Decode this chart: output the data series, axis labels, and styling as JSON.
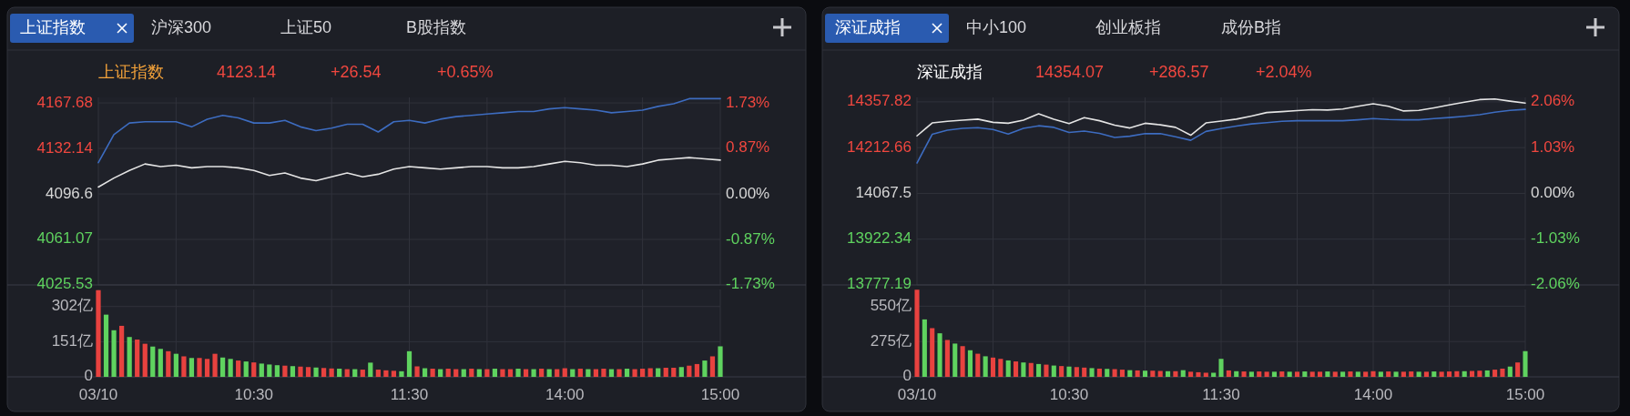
{
  "chart_data": [
    {
      "type": "line",
      "title": "上证指数",
      "annotations": [
        "4123.14",
        "+26.54",
        "+0.65%",
        "上证指数",
        "沪深300",
        "上证50",
        "B股指数"
      ],
      "categories": [
        null,
        null,
        null,
        null,
        null,
        null,
        null,
        null,
        null,
        null,
        null,
        null,
        null,
        null,
        null,
        null,
        null,
        null,
        null,
        null,
        null,
        null,
        null,
        null,
        null,
        null,
        null,
        null,
        null,
        null,
        null,
        null,
        null,
        null,
        null,
        null,
        null,
        null,
        null,
        null,
        null
      ],
      "series": [
        {
          "color": "#3d6cc0",
          "values": [
            4121,
            4143,
            4152,
            4153,
            4153,
            4153,
            4149,
            4155,
            4158,
            4156,
            4152,
            4152,
            4154,
            4149,
            4146,
            4148,
            4151,
            4151,
            4145,
            4153,
            4154,
            4152,
            4155,
            4157,
            4158,
            4159,
            4160,
            4161,
            4161,
            4163,
            4164,
            4163,
            4162,
            4160,
            4161,
            4162,
            4165,
            4167,
            4171,
            4171,
            4171
          ]
        },
        {
          "color": "#e4e4e4",
          "values": [
            4102,
            4109,
            4115,
            4120,
            4118,
            4119,
            4117,
            4118,
            4118,
            4117,
            4115,
            4111,
            4113,
            4109,
            4107,
            4110,
            4113,
            4110,
            4112,
            4116,
            4118,
            4117,
            4116,
            4117,
            4118,
            4118,
            4117,
            4117,
            4118,
            4120,
            4122,
            4121,
            4119,
            4119,
            4118,
            4120,
            4123,
            4124,
            4125,
            4124,
            4123
          ]
        }
      ],
      "ylim": [
        4025.53,
        4172
      ],
      "yticks": [
        4167.68,
        4132.14,
        4096.6,
        4061.07,
        4025.53
      ],
      "y2lim": [
        -1.73,
        1.84
      ],
      "y2ticks": [
        {
          "value": 1.73,
          "label": "1.73%"
        },
        {
          "value": 0.87,
          "label": "0.87%"
        },
        {
          "value": 0,
          "label": "0.00%"
        },
        {
          "value": -0.87,
          "label": "-0.87%"
        },
        {
          "value": -1.73,
          "label": "-1.73%"
        }
      ],
      "tick_labels": "y",
      "grid": true
    },
    {
      "type": "bar",
      "categories": [
        "03/10",
        null,
        null,
        null,
        null,
        null,
        null,
        null,
        null,
        null,
        null,
        null,
        null,
        null,
        null,
        null,
        null,
        null,
        null,
        null,
        "10:30",
        null,
        null,
        null,
        null,
        null,
        null,
        null,
        null,
        null,
        null,
        null,
        null,
        null,
        null,
        null,
        null,
        null,
        null,
        null,
        "11:30",
        null,
        null,
        null,
        null,
        null,
        null,
        null,
        null,
        null,
        null,
        null,
        null,
        null,
        null,
        null,
        null,
        null,
        null,
        null,
        "14:00",
        null,
        null,
        null,
        null,
        null,
        null,
        null,
        null,
        null,
        null,
        null,
        null,
        null,
        null,
        null,
        null,
        null,
        null,
        null,
        "15:00"
      ],
      "values": [
        372,
        267,
        200,
        219,
        171,
        160,
        142,
        130,
        120,
        110,
        99,
        88,
        81,
        81,
        77,
        99,
        83,
        77,
        70,
        66,
        62,
        57,
        53,
        50,
        48,
        46,
        44,
        42,
        40,
        38,
        36,
        35,
        33,
        33,
        31,
        61,
        31,
        28,
        26,
        24,
        110,
        45,
        37,
        35,
        33,
        35,
        33,
        33,
        35,
        33,
        33,
        35,
        33,
        33,
        35,
        33,
        33,
        35,
        33,
        33,
        37,
        33,
        35,
        33,
        33,
        35,
        33,
        33,
        35,
        33,
        35,
        37,
        37,
        39,
        39,
        42,
        48,
        55,
        70,
        88,
        131
      ],
      "colors": [
        "#e8423f",
        "#5fd35f",
        "#5fd35f",
        "#e8423f",
        "#5fd35f",
        "#e8423f",
        "#e8423f",
        "#5fd35f",
        "#5fd35f",
        "#e8423f",
        "#5fd35f",
        "#e8423f",
        "#5fd35f",
        "#e8423f",
        "#e8423f",
        "#e8423f",
        "#5fd35f",
        "#5fd35f",
        "#e8423f",
        "#5fd35f",
        "#e8423f",
        "#5fd35f",
        "#5fd35f",
        "#5fd35f",
        "#e8423f",
        "#5fd35f",
        "#e8423f",
        "#e8423f",
        "#5fd35f",
        "#e8423f",
        "#e8423f",
        "#5fd35f",
        "#e8423f",
        "#5fd35f",
        "#e8423f",
        "#5fd35f",
        "#e8423f",
        "#e8423f",
        "#e8423f",
        "#5fd35f",
        "#5fd35f",
        "#e8423f",
        "#5fd35f",
        "#e8423f",
        "#5fd35f",
        "#e8423f",
        "#e8423f",
        "#5fd35f",
        "#e8423f",
        "#5fd35f",
        "#e8423f",
        "#5fd35f",
        "#e8423f",
        "#e8423f",
        "#5fd35f",
        "#e8423f",
        "#5fd35f",
        "#e8423f",
        "#5fd35f",
        "#e8423f",
        "#e8423f",
        "#5fd35f",
        "#e8423f",
        "#5fd35f",
        "#e8423f",
        "#e8423f",
        "#5fd35f",
        "#e8423f",
        "#5fd35f",
        "#e8423f",
        "#e8423f",
        "#e8423f",
        "#5fd35f",
        "#e8423f",
        "#e8423f",
        "#5fd35f",
        "#e8423f",
        "#e8423f",
        "#5fd35f",
        "#e8423f",
        "#5fd35f"
      ],
      "ylim": [
        0,
        375
      ],
      "yticks": [
        0,
        {
          "value": 151,
          "label": "151亿"
        },
        {
          "value": 302,
          "label": "302亿"
        }
      ],
      "grid": true
    },
    {
      "type": "line",
      "title": "深证成指",
      "annotations": [
        "14354.07",
        "+286.57",
        "+2.04%",
        "深证成指",
        "中小100",
        "创业板指",
        "成份B指"
      ],
      "categories": [
        null,
        null,
        null,
        null,
        null,
        null,
        null,
        null,
        null,
        null,
        null,
        null,
        null,
        null,
        null,
        null,
        null,
        null,
        null,
        null,
        null,
        null,
        null,
        null,
        null,
        null,
        null,
        null,
        null,
        null,
        null,
        null,
        null,
        null,
        null,
        null,
        null,
        null,
        null,
        null,
        null
      ],
      "series": [
        {
          "color": "#3d6cc0",
          "values": [
            14164,
            14255,
            14268,
            14274,
            14276,
            14270,
            14256,
            14274,
            14282,
            14277,
            14261,
            14265,
            14258,
            14245,
            14249,
            14257,
            14257,
            14247,
            14236,
            14264,
            14273,
            14281,
            14288,
            14292,
            14296,
            14298,
            14298,
            14298,
            14298,
            14301,
            14305,
            14302,
            14301,
            14301,
            14305,
            14308,
            14312,
            14317,
            14325,
            14331,
            14334
          ]
        },
        {
          "color": "#e4e4e4",
          "values": [
            14250,
            14291,
            14296,
            14300,
            14303,
            14293,
            14290,
            14300,
            14320,
            14303,
            14289,
            14308,
            14298,
            14284,
            14275,
            14290,
            14285,
            14277,
            14252,
            14291,
            14297,
            14303,
            14313,
            14324,
            14327,
            14330,
            14333,
            14332,
            14335,
            14344,
            14352,
            14344,
            14329,
            14331,
            14339,
            14348,
            14357,
            14365,
            14367,
            14360,
            14354
          ]
        }
      ],
      "ylim": [
        13777.19,
        14372
      ],
      "yticks": [
        14357.82,
        14212.66,
        14067.5,
        13922.34,
        13777.19
      ],
      "y2lim": [
        -2.06,
        2.16
      ],
      "y2ticks": [
        {
          "value": 2.06,
          "label": "2.06%"
        },
        {
          "value": 1.03,
          "label": "1.03%"
        },
        {
          "value": 0,
          "label": "0.00%"
        },
        {
          "value": -1.03,
          "label": "-1.03%"
        },
        {
          "value": -2.06,
          "label": "-2.06%"
        }
      ],
      "tick_labels": "y",
      "grid": true
    },
    {
      "type": "bar",
      "categories": [
        "03/10",
        null,
        null,
        null,
        null,
        null,
        null,
        null,
        null,
        null,
        null,
        null,
        null,
        null,
        null,
        null,
        null,
        null,
        null,
        null,
        "10:30",
        null,
        null,
        null,
        null,
        null,
        null,
        null,
        null,
        null,
        null,
        null,
        null,
        null,
        null,
        null,
        null,
        null,
        null,
        null,
        "11:30",
        null,
        null,
        null,
        null,
        null,
        null,
        null,
        null,
        null,
        null,
        null,
        null,
        null,
        null,
        null,
        null,
        null,
        null,
        null,
        "14:00",
        null,
        null,
        null,
        null,
        null,
        null,
        null,
        null,
        null,
        null,
        null,
        null,
        null,
        null,
        null,
        null,
        null,
        null,
        null,
        "15:00"
      ],
      "values": [
        678,
        447,
        379,
        339,
        287,
        259,
        239,
        207,
        180,
        160,
        150,
        140,
        128,
        120,
        112,
        108,
        100,
        95,
        88,
        84,
        80,
        76,
        72,
        68,
        64,
        62,
        60,
        56,
        52,
        50,
        48,
        48,
        46,
        44,
        44,
        52,
        40,
        36,
        32,
        32,
        140,
        50,
        44,
        42,
        40,
        42,
        40,
        40,
        42,
        40,
        40,
        42,
        40,
        40,
        42,
        40,
        40,
        42,
        40,
        40,
        44,
        40,
        42,
        40,
        40,
        42,
        40,
        40,
        42,
        40,
        42,
        44,
        44,
        46,
        48,
        50,
        56,
        64,
        80,
        112,
        200
      ],
      "colors": [
        "#e8423f",
        "#5fd35f",
        "#e8423f",
        "#5fd35f",
        "#e8423f",
        "#5fd35f",
        "#e8423f",
        "#5fd35f",
        "#e8423f",
        "#5fd35f",
        "#e8423f",
        "#e8423f",
        "#5fd35f",
        "#e8423f",
        "#5fd35f",
        "#e8423f",
        "#5fd35f",
        "#e8423f",
        "#5fd35f",
        "#e8423f",
        "#5fd35f",
        "#e8423f",
        "#e8423f",
        "#5fd35f",
        "#e8423f",
        "#5fd35f",
        "#e8423f",
        "#e8423f",
        "#5fd35f",
        "#e8423f",
        "#5fd35f",
        "#e8423f",
        "#e8423f",
        "#5fd35f",
        "#e8423f",
        "#5fd35f",
        "#e8423f",
        "#e8423f",
        "#e8423f",
        "#5fd35f",
        "#5fd35f",
        "#e8423f",
        "#5fd35f",
        "#e8423f",
        "#5fd35f",
        "#e8423f",
        "#e8423f",
        "#5fd35f",
        "#e8423f",
        "#5fd35f",
        "#e8423f",
        "#5fd35f",
        "#e8423f",
        "#e8423f",
        "#5fd35f",
        "#e8423f",
        "#5fd35f",
        "#e8423f",
        "#5fd35f",
        "#e8423f",
        "#e8423f",
        "#5fd35f",
        "#e8423f",
        "#5fd35f",
        "#e8423f",
        "#e8423f",
        "#5fd35f",
        "#e8423f",
        "#5fd35f",
        "#e8423f",
        "#e8423f",
        "#e8423f",
        "#5fd35f",
        "#e8423f",
        "#e8423f",
        "#5fd35f",
        "#e8423f",
        "#e8423f",
        "#5fd35f",
        "#e8423f",
        "#5fd35f"
      ],
      "ylim": [
        0,
        680
      ],
      "yticks": [
        0,
        {
          "value": 275,
          "label": "275亿"
        },
        {
          "value": 550,
          "label": "550亿"
        }
      ],
      "grid": true
    }
  ]
}
